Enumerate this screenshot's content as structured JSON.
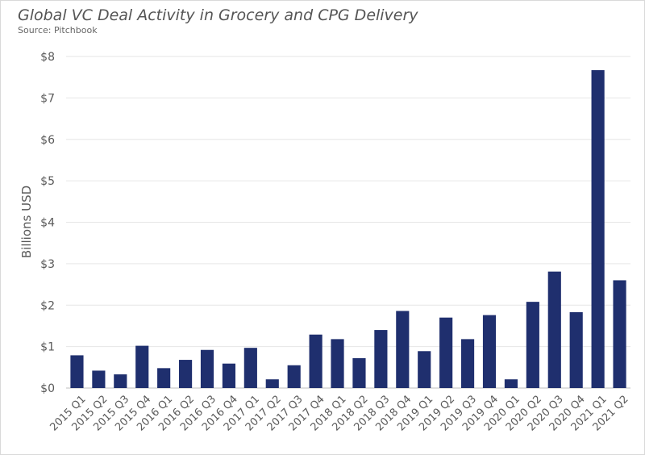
{
  "chart_data": {
    "type": "bar",
    "title": "Global VC Deal Activity in Grocery and CPG Delivery",
    "subtitle": "Source: Pitchbook",
    "xlabel": "",
    "ylabel": "Billions USD",
    "ylim": [
      0,
      8
    ],
    "ytick_labels": [
      "$0",
      "$1",
      "$2",
      "$3",
      "$4",
      "$5",
      "$6",
      "$7",
      "$8"
    ],
    "grid": true,
    "bar_color": "#1f2f6e",
    "grid_color": "#e6e6e6",
    "categories": [
      "2015 Q1",
      "2015 Q2",
      "2015 Q3",
      "2015 Q4",
      "2016 Q1",
      "2016 Q2",
      "2016 Q3",
      "2016 Q4",
      "2017 Q1",
      "2017 Q2",
      "2017 Q3",
      "2017 Q4",
      "2018 Q1",
      "2018 Q2",
      "2018 Q3",
      "2018 Q4",
      "2019 Q1",
      "2019 Q2",
      "2019 Q3",
      "2019 Q4",
      "2020 Q1",
      "2020 Q2",
      "2020 Q3",
      "2020 Q4",
      "2021 Q1",
      "2021 Q2"
    ],
    "values": [
      0.79,
      0.42,
      0.33,
      1.02,
      0.48,
      0.68,
      0.92,
      0.59,
      0.97,
      0.21,
      0.55,
      1.29,
      1.18,
      0.72,
      1.4,
      1.86,
      0.89,
      1.7,
      1.18,
      1.76,
      0.21,
      2.08,
      2.81,
      1.83,
      7.67,
      2.6
    ]
  }
}
